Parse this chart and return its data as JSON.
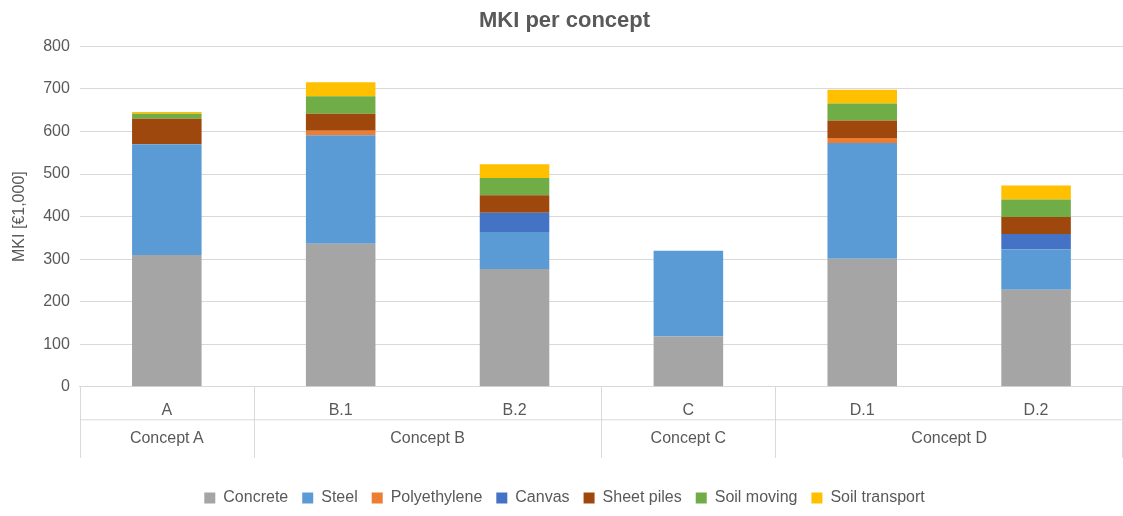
{
  "chart_data": {
    "type": "bar",
    "title": "MKI per concept",
    "ylabel": "MKI [€1,000]",
    "stacked": true,
    "grid": "y",
    "legend": "bottom",
    "categories": [
      "A",
      "B.1",
      "B.2",
      "C",
      "D.1",
      "D.2"
    ],
    "annotations": [
      "Concept A",
      "Concept B",
      "Concept C",
      "Concept D"
    ],
    "ylim": [
      0,
      800
    ],
    "yticks": [
      0,
      100,
      200,
      300,
      400,
      500,
      600,
      700,
      800
    ],
    "series": [
      {
        "name": "Concrete",
        "color": "#a5a5a5",
        "values": [
          310,
          336,
          277,
          118,
          301,
          228
        ]
      },
      {
        "name": "Steel",
        "color": "#5b9bd5",
        "values": [
          260,
          255,
          87,
          202,
          272,
          95
        ]
      },
      {
        "name": "Polyethylene",
        "color": "#ed7d31",
        "values": [
          0,
          11,
          0,
          0,
          12,
          0
        ]
      },
      {
        "name": "Canvas",
        "color": "#4472c4",
        "values": [
          0,
          0,
          45,
          0,
          0,
          36
        ]
      },
      {
        "name": "Sheet piles",
        "color": "#9e480e",
        "values": [
          60,
          40,
          41,
          0,
          41,
          40
        ]
      },
      {
        "name": "Soil moving",
        "color": "#70ad47",
        "values": [
          12,
          41,
          41,
          0,
          40,
          41
        ]
      },
      {
        "name": "Soil transport",
        "color": "#ffc000",
        "values": [
          4,
          33,
          32,
          0,
          32,
          33
        ]
      }
    ]
  }
}
